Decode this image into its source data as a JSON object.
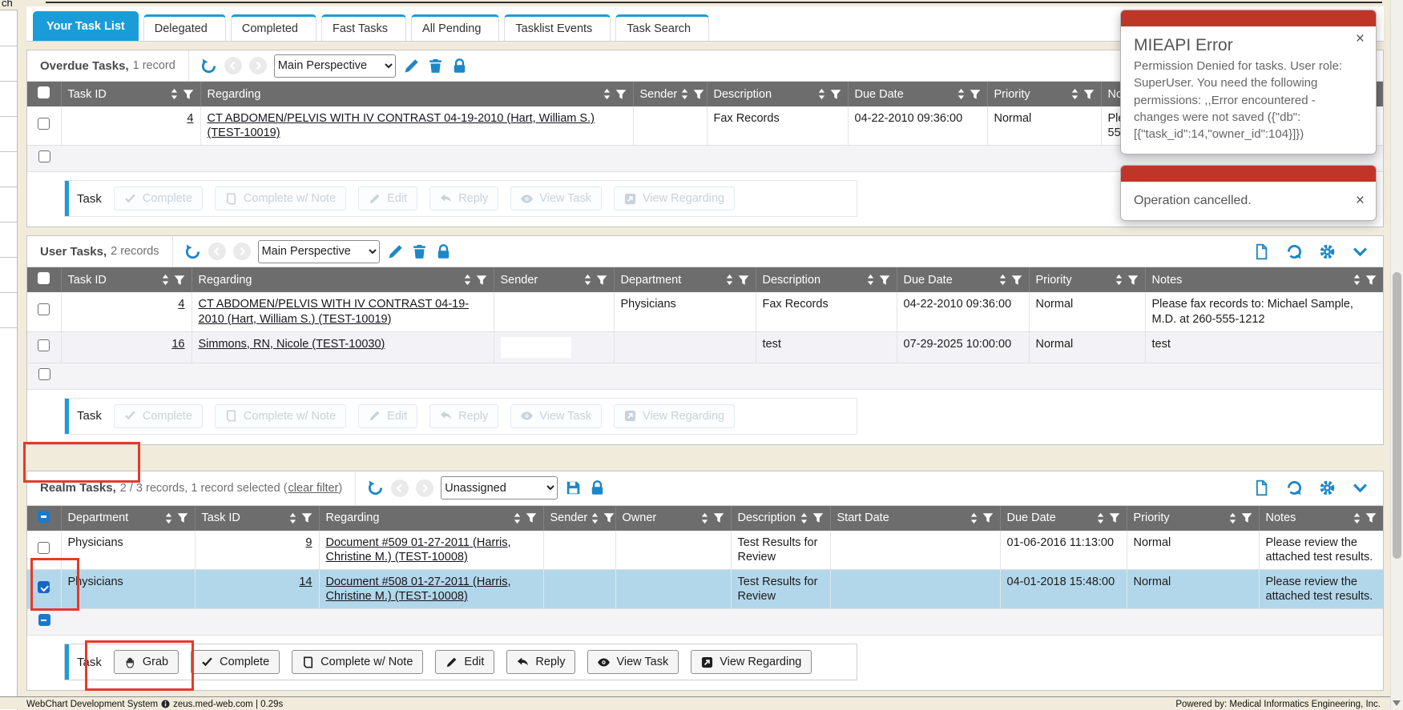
{
  "window": {
    "top_left_fragment": "ch"
  },
  "tabs": [
    {
      "label": "Your Task List",
      "active": true
    },
    {
      "label": "Delegated"
    },
    {
      "label": "Completed"
    },
    {
      "label": "Fast Tasks"
    },
    {
      "label": "All Pending"
    },
    {
      "label": "Tasklist Events"
    },
    {
      "label": "Task Search"
    }
  ],
  "task_bar_label": "Task",
  "panels": [
    {
      "title": "Overdue Tasks,",
      "count": "1 record",
      "perspective": "Main Perspective",
      "header_checkbox": "unchecked",
      "footer_checkbox": "unchecked",
      "buttons_disabled": true,
      "columns": [
        {
          "label": "Task ID",
          "link": true,
          "num": true
        },
        {
          "label": "Regarding",
          "link": true
        },
        {
          "label": "Sender"
        },
        {
          "label": "Description"
        },
        {
          "label": "Due Date"
        },
        {
          "label": "Priority"
        },
        {
          "label": "Notes"
        }
      ],
      "rows": [
        {
          "checkbox": "unchecked",
          "cells": [
            "4",
            "CT ABDOMEN/PELVIS WITH IV CONTRAST 04-19-2010 (Hart, William S.) (TEST-10019)",
            "",
            "Fax Records",
            "04-22-2010 09:36:00",
            "Normal",
            "Please fax records to: Michael Sample, M.D. at 260-555-1212"
          ]
        }
      ],
      "buttons": [
        {
          "label": "Complete",
          "icon": "check"
        },
        {
          "label": "Complete w/ Note",
          "icon": "note"
        },
        {
          "label": "Edit",
          "icon": "pencil"
        },
        {
          "label": "Reply",
          "icon": "reply"
        },
        {
          "label": "View Task",
          "icon": "eye"
        },
        {
          "label": "View Regarding",
          "icon": "viewreg"
        }
      ]
    },
    {
      "title": "User Tasks,",
      "count": "2 records",
      "perspective": "Main Perspective",
      "header_checkbox": "unchecked",
      "footer_checkbox": "unchecked",
      "buttons_disabled": true,
      "columns": [
        {
          "label": "Task ID",
          "link": true,
          "num": true
        },
        {
          "label": "Regarding",
          "link": true
        },
        {
          "label": "Sender"
        },
        {
          "label": "Department"
        },
        {
          "label": "Description"
        },
        {
          "label": "Due Date"
        },
        {
          "label": "Priority"
        },
        {
          "label": "Notes"
        }
      ],
      "rows": [
        {
          "checkbox": "unchecked",
          "cells": [
            "4",
            "CT ABDOMEN/PELVIS WITH IV CONTRAST 04-19-2010 (Hart, William S.) (TEST-10019)",
            "",
            "Physicians",
            "Fax Records",
            "04-22-2010 09:36:00",
            "Normal",
            "Please fax records to: Michael Sample, M.D. at 260-555-1212"
          ]
        },
        {
          "checkbox": "unchecked",
          "alt": true,
          "cells": [
            "16",
            "Simmons, RN, Nicole (TEST-10030)",
            {
              "input": true
            },
            "",
            "test",
            "07-29-2025 10:00:00",
            "Normal",
            "test"
          ]
        }
      ],
      "buttons": [
        {
          "label": "Complete",
          "icon": "check"
        },
        {
          "label": "Complete w/ Note",
          "icon": "note"
        },
        {
          "label": "Edit",
          "icon": "pencil"
        },
        {
          "label": "Reply",
          "icon": "reply"
        },
        {
          "label": "View Task",
          "icon": "eye"
        },
        {
          "label": "View Regarding",
          "icon": "viewreg"
        }
      ]
    },
    {
      "title": "Realm Tasks,",
      "count": "2 / 3 records, 1 record selected (",
      "clear_filter": "clear filter",
      "count_close": ")",
      "perspective": "Unassigned",
      "header_checkbox": "indeterminate",
      "footer_checkbox": "indeterminate",
      "buttons_disabled": false,
      "columns": [
        {
          "label": "Department"
        },
        {
          "label": "Task ID",
          "link": true,
          "num": true
        },
        {
          "label": "Regarding",
          "link": true
        },
        {
          "label": "Sender"
        },
        {
          "label": "Owner"
        },
        {
          "label": "Description"
        },
        {
          "label": "Start Date"
        },
        {
          "label": "Due Date"
        },
        {
          "label": "Priority"
        },
        {
          "label": "Notes"
        }
      ],
      "rows": [
        {
          "checkbox": "unchecked",
          "cells": [
            "Physicians",
            "9",
            "Document #509 01-27-2011 (Harris, Christine M.) (TEST-10008)",
            "",
            "",
            "Test Results for Review",
            "",
            "01-06-2016 11:13:00",
            "Normal",
            "Please review the attached test results."
          ]
        },
        {
          "checkbox": "checked",
          "selected": true,
          "cells": [
            "Physicians",
            "14",
            "Document #508 01-27-2011 (Harris, Christine M.) (TEST-10008)",
            "",
            "",
            "Test Results for Review",
            "",
            "04-01-2018 15:48:00",
            "Normal",
            "Please review the attached test results."
          ]
        }
      ],
      "buttons": [
        {
          "label": "Grab",
          "icon": "grab"
        },
        {
          "label": "Complete",
          "icon": "check"
        },
        {
          "label": "Complete w/ Note",
          "icon": "note"
        },
        {
          "label": "Edit",
          "icon": "pencil"
        },
        {
          "label": "Reply",
          "icon": "reply"
        },
        {
          "label": "View Task",
          "icon": "eye"
        },
        {
          "label": "View Regarding",
          "icon": "viewreg"
        }
      ]
    }
  ],
  "popups": [
    {
      "title": "MIEAPI Error",
      "body": "Permission Denied for tasks. User role: SuperUser. You need the following permissions: ,,Error encountered - changes were not saved ({\"db\": [{\"task_id\":14,\"owner_id\":104}]})",
      "close": "×"
    },
    {
      "body": "Operation cancelled.",
      "close": "×"
    }
  ],
  "footer": {
    "left": "WebChart Development System",
    "host": "zeus.med-web.com | 0.29s",
    "right": "Powered by: Medical Informatics Engineering, Inc."
  }
}
